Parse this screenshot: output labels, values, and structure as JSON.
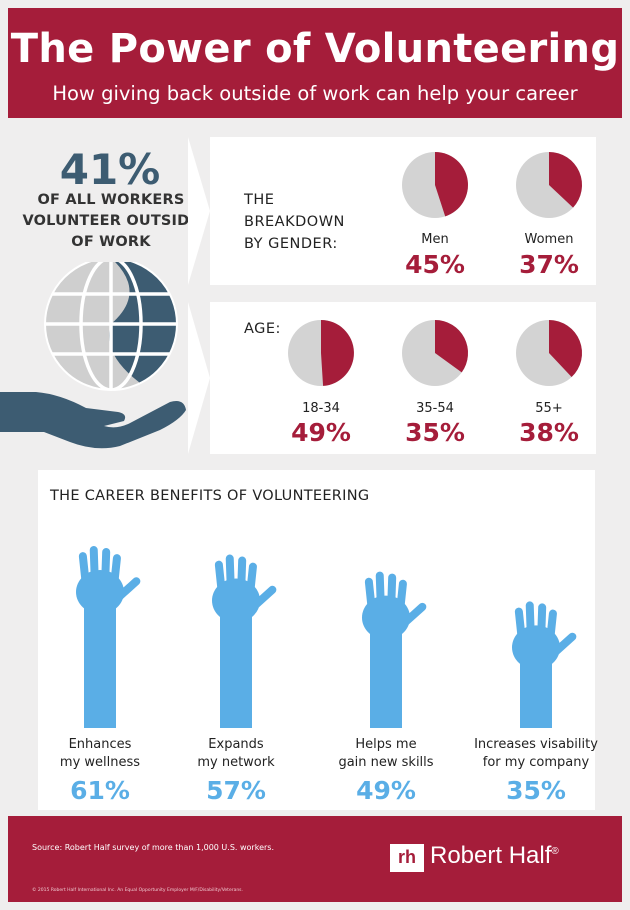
{
  "header": {
    "title": "The Power of Volunteering",
    "subtitle": "How giving back outside of work can help your career"
  },
  "headline": {
    "value": "41%",
    "lines": [
      "OF ALL WORKERS",
      "VOLUNTEER OUTSIDE",
      "OF WORK"
    ]
  },
  "colors": {
    "brand": "#a51d3a",
    "pie_rest": "#d3d3d3",
    "slate": "#3d5c72",
    "hand": "#5aaee6"
  },
  "icons": [
    "globe-icon",
    "open-hand-icon",
    "raised-hand-icon",
    "robert-half-logo"
  ],
  "chart_data": [
    {
      "type": "pie",
      "title_lines": [
        "THE",
        "BREAKDOWN",
        "BY GENDER:"
      ],
      "categories": [
        "Men",
        "Women"
      ],
      "values": [
        45,
        37
      ],
      "labels": [
        "45%",
        "37%"
      ]
    },
    {
      "type": "pie",
      "title_lines": [
        "AGE:"
      ],
      "categories": [
        "18-34",
        "35-54",
        "55+"
      ],
      "values": [
        49,
        35,
        38
      ],
      "labels": [
        "49%",
        "35%",
        "38%"
      ]
    },
    {
      "type": "bar",
      "title": "THE CAREER BENEFITS OF VOLUNTEERING",
      "categories": [
        [
          "Enhances",
          "my wellness"
        ],
        [
          "Expands",
          "my network"
        ],
        [
          "Helps me",
          "gain new skills"
        ],
        [
          "Increases visability",
          "for my company"
        ]
      ],
      "values": [
        61,
        57,
        49,
        35
      ],
      "labels": [
        "61%",
        "57%",
        "49%",
        "35%"
      ]
    }
  ],
  "footer": {
    "source": "Source: Robert Half survey of more than 1,000 U.S. workers.",
    "legal": "© 2015 Robert Half International Inc. An Equal Opportunity Employer M/F/Disability/Veterans.",
    "logo_mark": "rh",
    "logo_text": "Robert Half",
    "logo_registered": "®"
  }
}
